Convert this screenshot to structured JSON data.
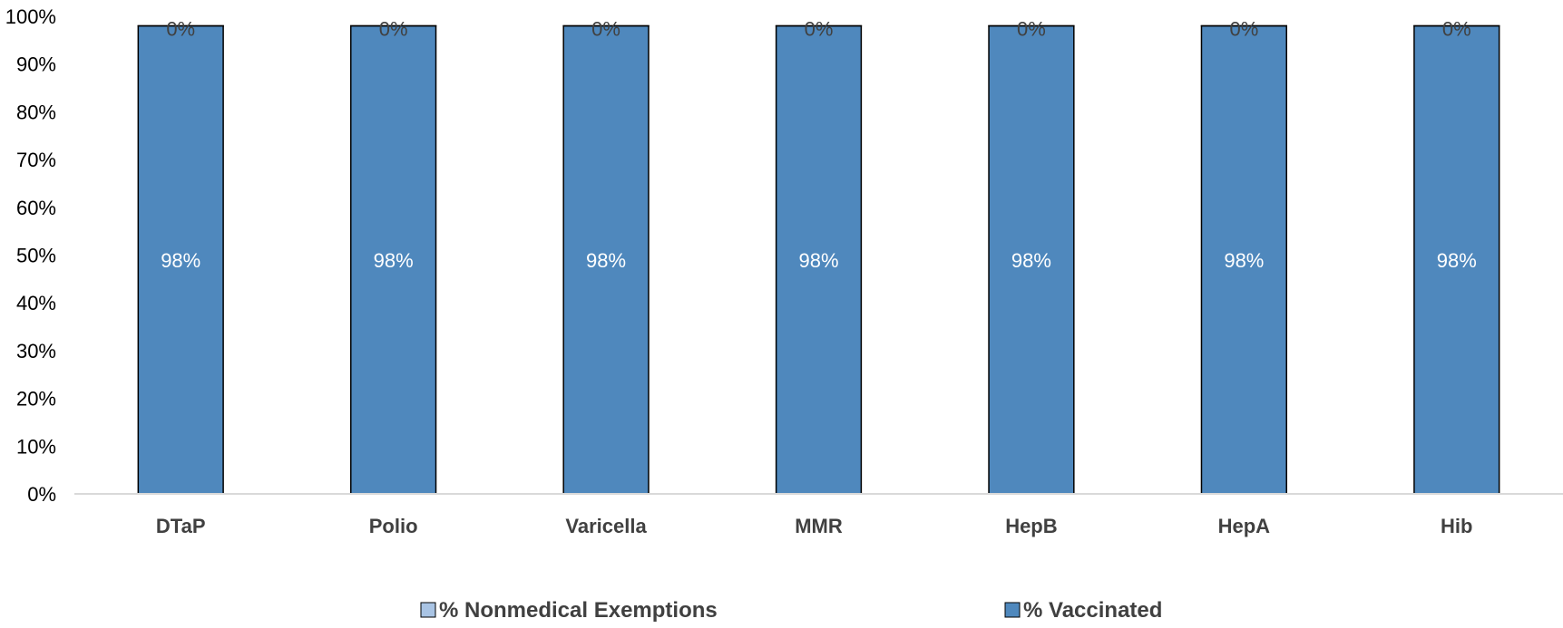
{
  "chart_data": {
    "type": "bar",
    "stacked": true,
    "categories": [
      "DTaP",
      "Polio",
      "Varicella",
      "MMR",
      "HepB",
      "HepA",
      "Hib"
    ],
    "series": [
      {
        "name": "% Vaccinated",
        "values": [
          98,
          98,
          98,
          98,
          98,
          98,
          98
        ],
        "labels": [
          "98%",
          "98%",
          "98%",
          "98%",
          "98%",
          "98%",
          "98%"
        ],
        "color": "#4f88bd"
      },
      {
        "name": "% Nonmedical Exemptions",
        "values": [
          0,
          0,
          0,
          0,
          0,
          0,
          0
        ],
        "labels": [
          "0%",
          "0%",
          "0%",
          "0%",
          "0%",
          "0%",
          "0%"
        ],
        "color": "#a9c4e4"
      }
    ],
    "y_ticks": [
      "0%",
      "10%",
      "20%",
      "30%",
      "40%",
      "50%",
      "60%",
      "70%",
      "80%",
      "90%",
      "100%"
    ],
    "ylim": [
      0,
      100
    ],
    "grid": false,
    "legend_position": "bottom",
    "legend": [
      {
        "label": "% Nonmedical Exemptions",
        "color": "#a9c4e4"
      },
      {
        "label": "% Vaccinated",
        "color": "#4f88bd"
      }
    ]
  }
}
